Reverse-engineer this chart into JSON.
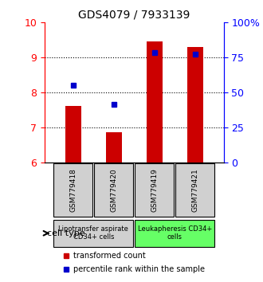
{
  "title": "GDS4079 / 7933139",
  "samples": [
    "GSM779418",
    "GSM779420",
    "GSM779419",
    "GSM779421"
  ],
  "transformed_counts": [
    7.6,
    6.85,
    9.47,
    9.3
  ],
  "percentile_ranks": [
    8.2,
    7.65,
    9.15,
    9.1
  ],
  "ylim": [
    6,
    10
  ],
  "yticks_left": [
    6,
    7,
    8,
    9,
    10
  ],
  "yticks_right": [
    0,
    25,
    50,
    75,
    100
  ],
  "bar_color": "#cc0000",
  "dot_color": "#0000cc",
  "bar_bottom": 6,
  "cell_type_groups": [
    {
      "label": "Lipotransfer aspirate\nCD34+ cells",
      "indices": [
        0,
        1
      ],
      "color": "#d0d0d0"
    },
    {
      "label": "Leukapheresis CD34+\ncells",
      "indices": [
        2,
        3
      ],
      "color": "#66ff66"
    }
  ],
  "legend_bar_label": "transformed count",
  "legend_dot_label": "percentile rank within the sample",
  "cell_type_label": "cell type",
  "grid_color": "#000000",
  "background_color": "#ffffff",
  "plot_bg": "#ffffff"
}
